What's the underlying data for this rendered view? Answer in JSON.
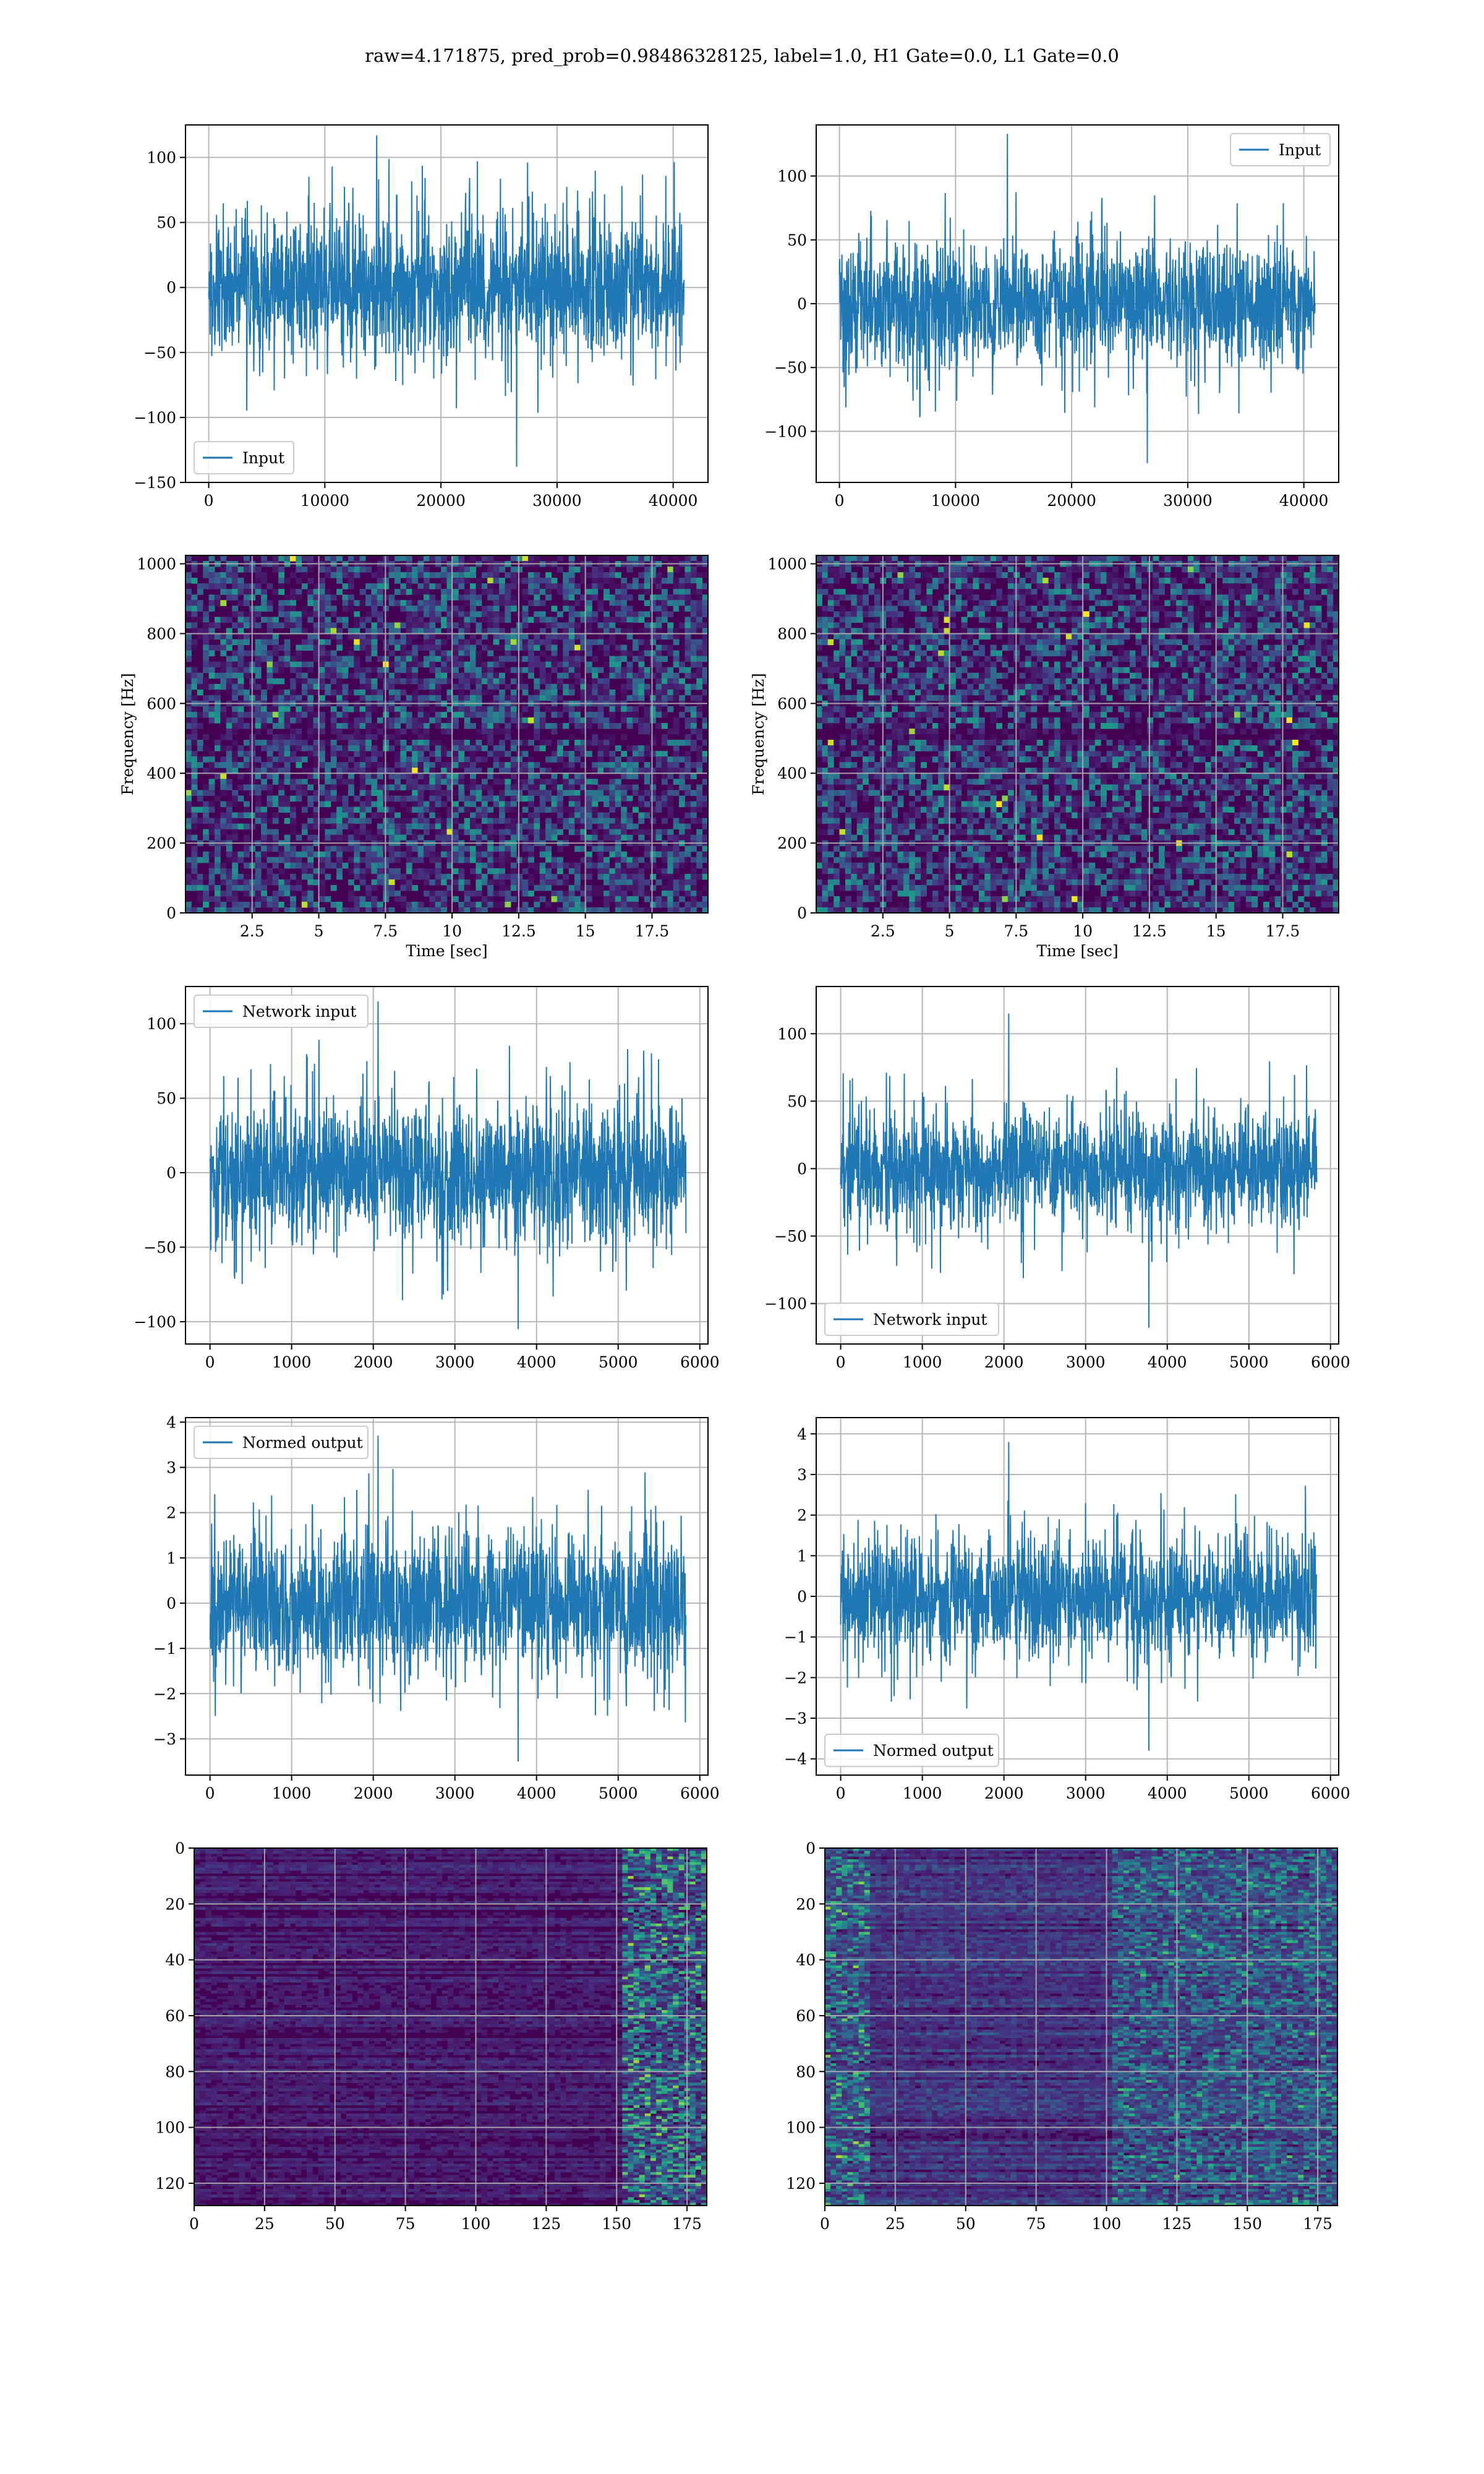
{
  "figure": {
    "title": "raw=4.171875, pred_prob=0.98486328125, label=1.0, H1 Gate=0.0, L1 Gate=0.0"
  },
  "colors": {
    "line": "#1f77b4",
    "grid": "#b0b0b0",
    "axes": "#000000",
    "viridis": [
      "#440154",
      "#482878",
      "#3e4989",
      "#31688e",
      "#26828e",
      "#1f9e89",
      "#35b779",
      "#6ece58",
      "#b5de2b",
      "#fde725"
    ]
  },
  "chart_data": [
    {
      "id": "h1-input",
      "type": "line",
      "column": 0,
      "row": 0,
      "xlim": [
        -2000,
        43000
      ],
      "ylim": [
        -150,
        125
      ],
      "xticks": [
        0,
        10000,
        20000,
        30000,
        40000
      ],
      "yticks": [
        -150,
        -100,
        -50,
        0,
        50,
        100
      ],
      "series": [
        {
          "name": "Input",
          "x_range": [
            0,
            40960
          ],
          "typical_amplitude": 60,
          "peak_max": 117,
          "peak_min": -138
        }
      ],
      "legend": "lower left",
      "grid": true
    },
    {
      "id": "l1-input",
      "type": "line",
      "column": 1,
      "row": 0,
      "xlim": [
        -2000,
        43000
      ],
      "ylim": [
        -140,
        140
      ],
      "xticks": [
        0,
        10000,
        20000,
        30000,
        40000
      ],
      "yticks": [
        -100,
        -50,
        0,
        50,
        100
      ],
      "series": [
        {
          "name": "Input",
          "x_range": [
            0,
            40960
          ],
          "typical_amplitude": 55,
          "peak_max": 133,
          "peak_min": -125
        }
      ],
      "legend": "upper right",
      "grid": true
    },
    {
      "id": "h1-spectrogram",
      "type": "heatmap",
      "column": 0,
      "row": 1,
      "xlim": [
        0,
        19.6
      ],
      "ylim": [
        0,
        1024
      ],
      "xticks": [
        2.5,
        5.0,
        7.5,
        10.0,
        12.5,
        15.0,
        17.5
      ],
      "yticks": [
        0,
        200,
        400,
        600,
        800,
        1000
      ],
      "xlabel": "Time [sec]",
      "ylabel": "Frequency [Hz]",
      "grid": true
    },
    {
      "id": "l1-spectrogram",
      "type": "heatmap",
      "column": 1,
      "row": 1,
      "xlim": [
        0,
        19.6
      ],
      "ylim": [
        0,
        1024
      ],
      "xticks": [
        2.5,
        5.0,
        7.5,
        10.0,
        12.5,
        15.0,
        17.5
      ],
      "yticks": [
        0,
        200,
        400,
        600,
        800,
        1000
      ],
      "xlabel": "Time [sec]",
      "ylabel": "Frequency [Hz]",
      "grid": true
    },
    {
      "id": "h1-network-input",
      "type": "line",
      "column": 0,
      "row": 2,
      "xlim": [
        -300,
        6100
      ],
      "ylim": [
        -115,
        125
      ],
      "xticks": [
        0,
        1000,
        2000,
        3000,
        4000,
        5000,
        6000
      ],
      "yticks": [
        -100,
        -50,
        0,
        50,
        100
      ],
      "series": [
        {
          "name": "Network input",
          "x_range": [
            0,
            5830
          ],
          "typical_amplitude": 55,
          "peak_max": 115,
          "peak_min": -105
        }
      ],
      "legend": "upper left",
      "grid": true
    },
    {
      "id": "l1-network-input",
      "type": "line",
      "column": 1,
      "row": 2,
      "xlim": [
        -300,
        6100
      ],
      "ylim": [
        -130,
        135
      ],
      "xticks": [
        0,
        1000,
        2000,
        3000,
        4000,
        5000,
        6000
      ],
      "yticks": [
        -100,
        -50,
        0,
        50,
        100
      ],
      "series": [
        {
          "name": "Network input",
          "x_range": [
            0,
            5830
          ],
          "typical_amplitude": 50,
          "peak_max": 115,
          "peak_min": -118
        }
      ],
      "legend": "lower left",
      "grid": true
    },
    {
      "id": "h1-normed-output",
      "type": "line",
      "column": 0,
      "row": 3,
      "xlim": [
        -300,
        6100
      ],
      "ylim": [
        -3.8,
        4.1
      ],
      "xticks": [
        0,
        1000,
        2000,
        3000,
        4000,
        5000,
        6000
      ],
      "yticks": [
        -3,
        -2,
        -1,
        0,
        1,
        2,
        3,
        4
      ],
      "series": [
        {
          "name": "Normed output",
          "x_range": [
            0,
            5830
          ],
          "typical_amplitude": 1.8,
          "peak_max": 3.7,
          "peak_min": -3.5
        }
      ],
      "legend": "upper left",
      "grid": true
    },
    {
      "id": "l1-normed-output",
      "type": "line",
      "column": 1,
      "row": 3,
      "xlim": [
        -300,
        6100
      ],
      "ylim": [
        -4.4,
        4.4
      ],
      "xticks": [
        0,
        1000,
        2000,
        3000,
        4000,
        5000,
        6000
      ],
      "yticks": [
        -4,
        -3,
        -2,
        -1,
        0,
        1,
        2,
        3,
        4
      ],
      "series": [
        {
          "name": "Normed output",
          "x_range": [
            0,
            5830
          ],
          "typical_amplitude": 1.7,
          "peak_max": 3.8,
          "peak_min": -3.8
        }
      ],
      "legend": "lower left",
      "grid": true
    },
    {
      "id": "h1-feature-map",
      "type": "heatmap",
      "column": 0,
      "row": 4,
      "xlim": [
        0,
        182
      ],
      "ylim": [
        128,
        0
      ],
      "xticks": [
        0,
        25,
        50,
        75,
        100,
        125,
        150,
        175
      ],
      "yticks": [
        0,
        20,
        40,
        60,
        80,
        100,
        120
      ],
      "grid": true
    },
    {
      "id": "l1-feature-map",
      "type": "heatmap",
      "column": 1,
      "row": 4,
      "xlim": [
        0,
        182
      ],
      "ylim": [
        128,
        0
      ],
      "xticks": [
        0,
        25,
        50,
        75,
        100,
        125,
        150,
        175
      ],
      "yticks": [
        0,
        20,
        40,
        60,
        80,
        100,
        120
      ],
      "grid": true
    }
  ]
}
